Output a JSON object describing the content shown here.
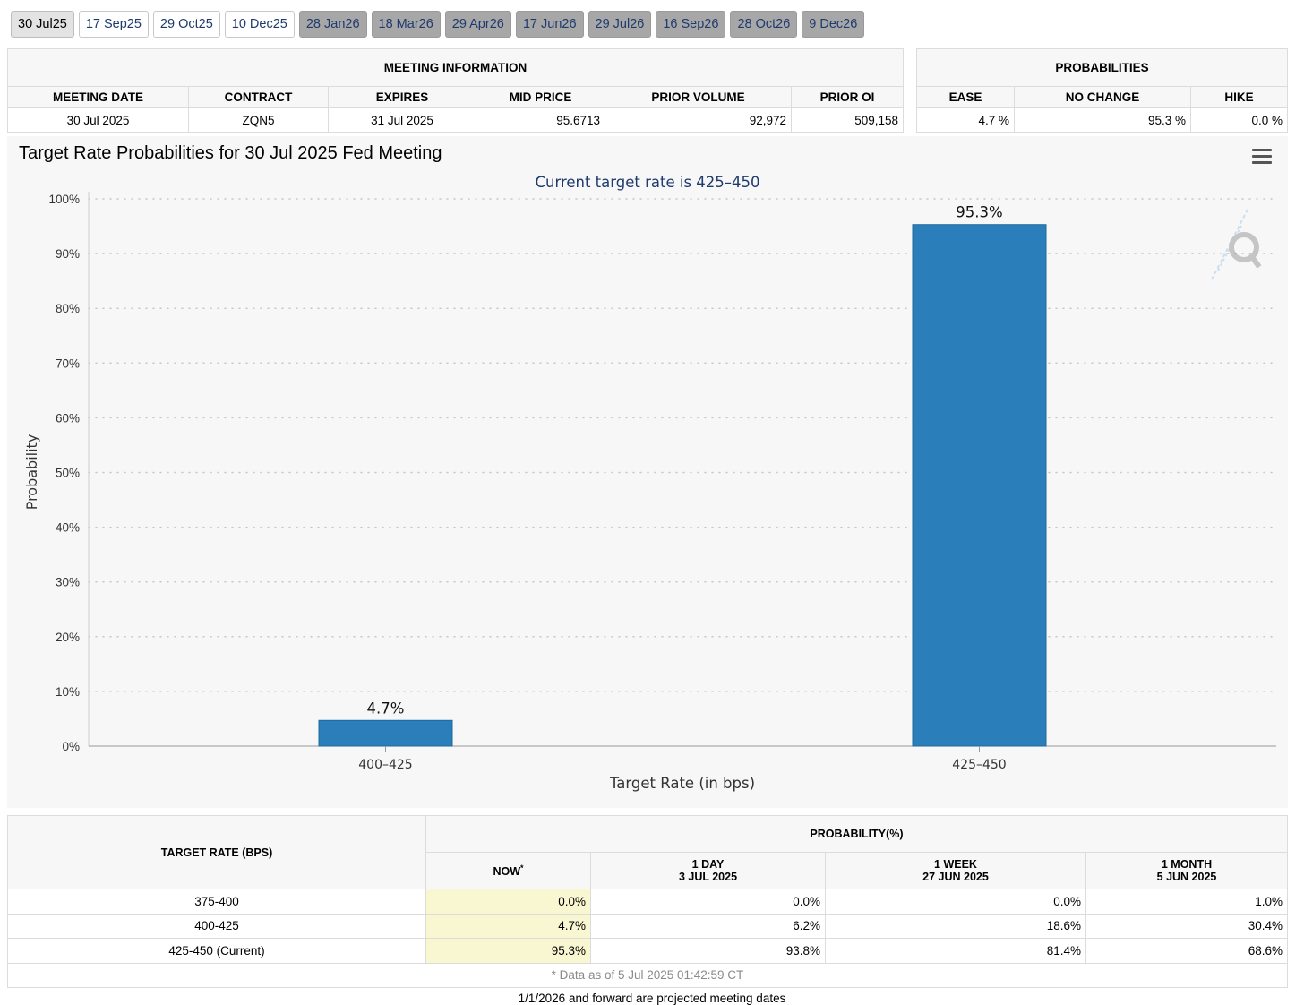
{
  "tabs": [
    {
      "label": "30 Jul25",
      "state": "active"
    },
    {
      "label": "17 Sep25",
      "state": "normal"
    },
    {
      "label": "29 Oct25",
      "state": "normal"
    },
    {
      "label": "10 Dec25",
      "state": "normal"
    },
    {
      "label": "28 Jan26",
      "state": "future"
    },
    {
      "label": "18 Mar26",
      "state": "future"
    },
    {
      "label": "29 Apr26",
      "state": "future"
    },
    {
      "label": "17 Jun26",
      "state": "future"
    },
    {
      "label": "29 Jul26",
      "state": "future"
    },
    {
      "label": "16 Sep26",
      "state": "future"
    },
    {
      "label": "28 Oct26",
      "state": "future"
    },
    {
      "label": "9 Dec26",
      "state": "future"
    }
  ],
  "meeting_info": {
    "title": "MEETING INFORMATION",
    "headers": [
      "MEETING DATE",
      "CONTRACT",
      "EXPIRES",
      "MID PRICE",
      "PRIOR VOLUME",
      "PRIOR OI"
    ],
    "values": [
      "30 Jul 2025",
      "ZQN5",
      "31 Jul 2025",
      "95.6713",
      "92,972",
      "509,158"
    ]
  },
  "probabilities": {
    "title": "PROBABILITIES",
    "headers": [
      "EASE",
      "NO CHANGE",
      "HIKE"
    ],
    "values": [
      "4.7 %",
      "95.3 %",
      "0.0 %"
    ]
  },
  "chart_data": {
    "type": "bar",
    "title": "Target Rate Probabilities for 30 Jul 2025 Fed Meeting",
    "subtitle": "Current target rate is 425–450",
    "categories": [
      "400–425",
      "425–450"
    ],
    "values": [
      4.7,
      95.3
    ],
    "data_labels": [
      "4.7%",
      "95.3%"
    ],
    "xlabel": "Target Rate (in bps)",
    "ylabel": "Probability",
    "ylim": [
      0,
      100
    ],
    "yticks": [
      "0%",
      "10%",
      "20%",
      "30%",
      "40%",
      "50%",
      "60%",
      "70%",
      "80%",
      "90%",
      "100%"
    ],
    "bar_color": "#2a7fba",
    "grid": true
  },
  "history": {
    "col_target": "TARGET RATE (BPS)",
    "col_prob": "PROBABILITY(%)",
    "sub_headers": [
      {
        "line1": "NOW",
        "line2": "",
        "mark": "*"
      },
      {
        "line1": "1 DAY",
        "line2": "3 JUL 2025",
        "mark": ""
      },
      {
        "line1": "1 WEEK",
        "line2": "27 JUN 2025",
        "mark": ""
      },
      {
        "line1": "1 MONTH",
        "line2": "5 JUN 2025",
        "mark": ""
      }
    ],
    "rows": [
      {
        "rate": "375-400",
        "vals": [
          "0.0%",
          "0.0%",
          "0.0%",
          "1.0%"
        ]
      },
      {
        "rate": "400-425",
        "vals": [
          "4.7%",
          "6.2%",
          "18.6%",
          "30.4%"
        ]
      },
      {
        "rate": "425-450 (Current)",
        "vals": [
          "95.3%",
          "93.8%",
          "81.4%",
          "68.6%"
        ]
      }
    ],
    "footnote": "* Data as of 5 Jul 2025 01:42:59 CT"
  },
  "projected_note": "1/1/2026 and forward are projected meeting dates"
}
